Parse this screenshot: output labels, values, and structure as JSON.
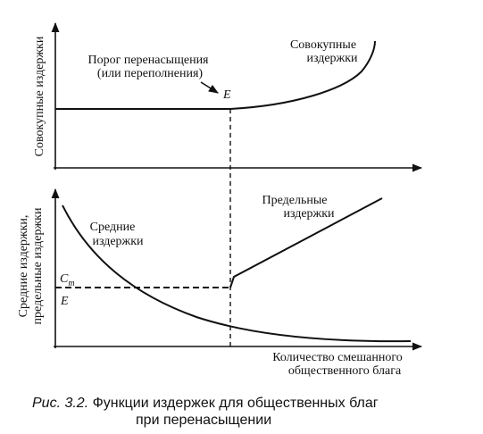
{
  "top_panel": {
    "y_axis_label": "Совокупные издержки",
    "threshold_label": [
      "Порог перенасыщения",
      "(или переполнения)"
    ],
    "point_label": "E",
    "curve_label": [
      "Совокупные",
      "издержки"
    ]
  },
  "bottom_panel": {
    "y_axis_label": [
      "Средние издержки,",
      "предельные издержки"
    ],
    "average_label": [
      "Средние",
      "издержки"
    ],
    "marginal_label": [
      "Предельные",
      "издержки"
    ],
    "cm_label": "C",
    "cm_subscript": "m",
    "e_label": "E",
    "x_axis_label": [
      "Количество смешанного",
      "общественного блага"
    ]
  },
  "caption": {
    "number": "Рис. 3.2.",
    "text": [
      "Функции издержек для общественных благ",
      "при перенасыщении"
    ]
  }
}
